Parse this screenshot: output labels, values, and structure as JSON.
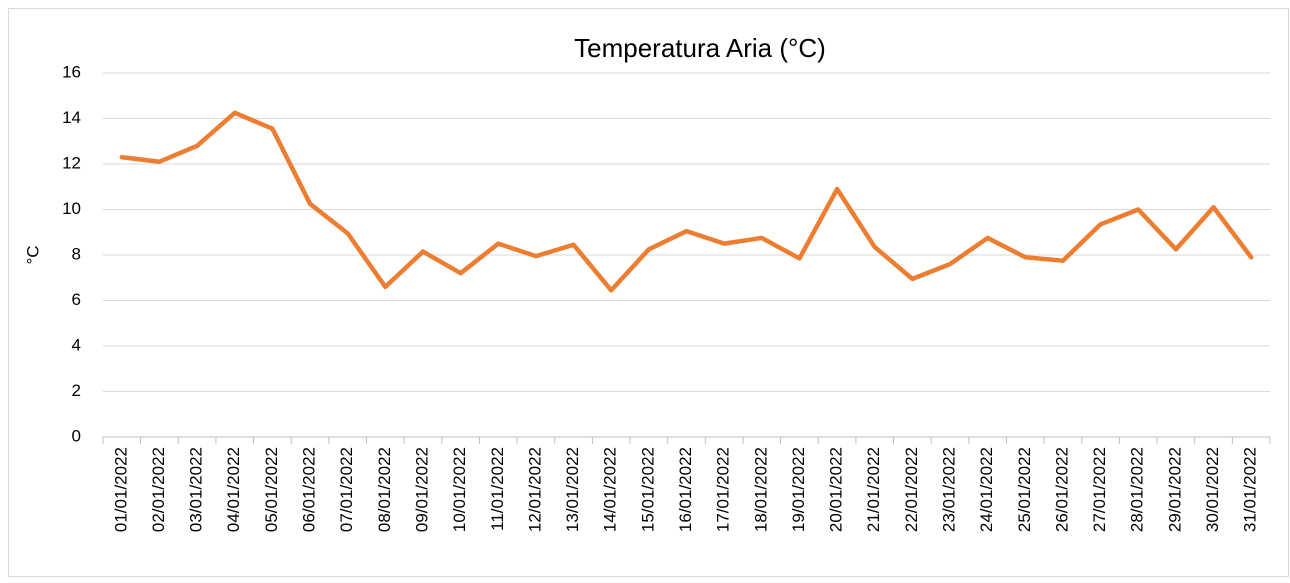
{
  "chart_data": {
    "type": "line",
    "title": "Temperatura Aria (°C)",
    "y_label": "°C",
    "categories": [
      "01/01/2022",
      "02/01/2022",
      "03/01/2022",
      "04/01/2022",
      "05/01/2022",
      "06/01/2022",
      "07/01/2022",
      "08/01/2022",
      "09/01/2022",
      "10/01/2022",
      "11/01/2022",
      "12/01/2022",
      "13/01/2022",
      "14/01/2022",
      "15/01/2022",
      "16/01/2022",
      "17/01/2022",
      "18/01/2022",
      "19/01/2022",
      "20/01/2022",
      "21/01/2022",
      "22/01/2022",
      "23/01/2022",
      "24/01/2022",
      "25/01/2022",
      "26/01/2022",
      "27/01/2022",
      "28/01/2022",
      "29/01/2022",
      "30/01/2022",
      "31/01/2022"
    ],
    "values": [
      12.3,
      12.1,
      12.8,
      14.25,
      13.55,
      10.25,
      8.95,
      6.6,
      8.15,
      7.2,
      8.5,
      7.95,
      8.45,
      6.45,
      8.25,
      9.05,
      8.5,
      8.75,
      7.85,
      10.9,
      8.35,
      6.95,
      7.6,
      8.75,
      7.9,
      7.75,
      9.35,
      10.0,
      8.25,
      10.1,
      7.9
    ],
    "color": "#ed7d31",
    "ylim": [
      0,
      16
    ],
    "yticks": [
      0,
      2,
      4,
      6,
      8,
      10,
      12,
      14,
      16
    ],
    "grid": true
  }
}
